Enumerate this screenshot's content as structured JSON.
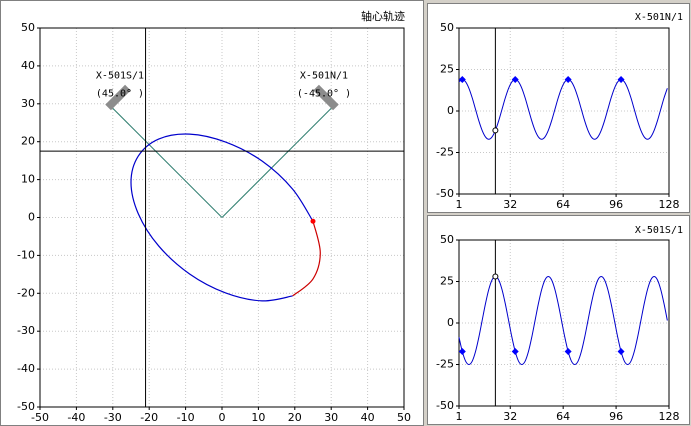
{
  "chart_data": [
    {
      "type": "orbit",
      "title": "轴心轨迹",
      "xlim": [
        -50,
        50
      ],
      "ylim": [
        -50,
        50
      ],
      "xticks": [
        -50,
        -40,
        -30,
        -20,
        -10,
        0,
        10,
        20,
        30,
        40,
        50
      ],
      "yticks": [
        -50,
        -40,
        -30,
        -20,
        -10,
        0,
        10,
        20,
        30,
        40,
        50
      ],
      "grid": true,
      "cursor": {
        "x": -21,
        "y": 17.5
      },
      "series": [
        {
          "color": "#0000cc",
          "x": [
            25.0,
            19.4,
            11.0,
            1,
            -8.9,
            -17.4,
            -23.0,
            -25,
            -23.0,
            -17.4,
            -8.9,
            1,
            11.0,
            19.4
          ],
          "values": [
            -1.0,
            7.5,
            14.9,
            19.9,
            22.0,
            20.7,
            16.2,
            9.3,
            1.0,
            -7.5,
            -14.9,
            -19.9,
            -22.0,
            -20.7
          ]
        },
        {
          "color": "#cc0000",
          "x": [
            25.0,
            27,
            25.0,
            19.4
          ],
          "values": [
            -1.0,
            -9.3,
            -16.2,
            -20.7
          ]
        }
      ],
      "key_point": {
        "x": 25.0,
        "y": -1.0,
        "color": "#ff0000"
      },
      "probes": [
        {
          "label": "X-501S/1",
          "angle_label": "(45.0° )"
        },
        {
          "label": "X-501N/1",
          "angle_label": "(-45.0° )"
        }
      ]
    },
    {
      "type": "line",
      "title": "X-501N/1",
      "xlim": [
        1,
        128
      ],
      "ylim": [
        -50,
        50
      ],
      "xticks": [
        1,
        32,
        64,
        96,
        128
      ],
      "yticks": [
        -50,
        -25,
        0,
        25,
        50
      ],
      "grid": true,
      "x": [
        1,
        3,
        5,
        7,
        9,
        11,
        13,
        15,
        17,
        19,
        21,
        23,
        25,
        27,
        29,
        31,
        33,
        35,
        37,
        39,
        41,
        43,
        45,
        47,
        49,
        51,
        53,
        55,
        57,
        59,
        61,
        63,
        65,
        67,
        69,
        71,
        73,
        75,
        77,
        79,
        81,
        83,
        85,
        87,
        89,
        91,
        93,
        95,
        97,
        99,
        101,
        103,
        105,
        107,
        109,
        111,
        113,
        115,
        117,
        119,
        121,
        123,
        125,
        127
      ],
      "series": [
        {
          "color": "#0000cc",
          "values": [
            17.6,
            19,
            17.6,
            13.7,
            7.9,
            1,
            -5.9,
            -11.7,
            -15.6,
            -17,
            -15.6,
            -11.7,
            -5.9,
            1,
            7.9,
            13.7,
            17.6,
            19,
            17.6,
            13.7,
            7.9,
            1,
            -5.9,
            -11.7,
            -15.6,
            -17,
            -15.6,
            -11.7,
            -5.9,
            1,
            7.9,
            13.7,
            17.6,
            19,
            17.6,
            13.7,
            7.9,
            1,
            -5.9,
            -11.7,
            -15.6,
            -17,
            -15.6,
            -11.7,
            -5.9,
            1,
            7.9,
            13.7,
            17.6,
            19,
            17.6,
            13.7,
            7.9,
            1,
            -5.9,
            -11.7,
            -15.6,
            -17,
            -15.6,
            -11.7,
            -5.9,
            1,
            7.9,
            13.7
          ]
        }
      ],
      "markers": {
        "x": [
          3,
          35,
          67,
          99
        ],
        "values": [
          19,
          19,
          19,
          19
        ]
      },
      "cursor": {
        "x": 23,
        "y": -11.7
      }
    },
    {
      "type": "line",
      "title": "X-501S/1",
      "xlim": [
        1,
        128
      ],
      "ylim": [
        -50,
        50
      ],
      "xticks": [
        1,
        32,
        64,
        96,
        128
      ],
      "yticks": [
        -50,
        -25,
        0,
        25,
        50
      ],
      "grid": true,
      "x": [
        1,
        3,
        5,
        7,
        9,
        11,
        13,
        15,
        17,
        19,
        21,
        23,
        25,
        27,
        29,
        31,
        33,
        35,
        37,
        39,
        41,
        43,
        45,
        47,
        49,
        51,
        53,
        55,
        57,
        59,
        61,
        63,
        65,
        67,
        69,
        71,
        73,
        75,
        77,
        79,
        81,
        83,
        85,
        87,
        89,
        91,
        93,
        95,
        97,
        99,
        101,
        103,
        105,
        107,
        109,
        111,
        113,
        115,
        117,
        119,
        121,
        123,
        125,
        127
      ],
      "series": [
        {
          "color": "#0000cc",
          "values": [
            -8.6,
            -17.2,
            -23,
            -25,
            -23,
            -17.2,
            -8.6,
            1.5,
            11.6,
            20.2,
            26,
            28,
            26,
            20.2,
            11.6,
            1.5,
            -8.6,
            -17.2,
            -23,
            -25,
            -23,
            -17.2,
            -8.6,
            1.5,
            11.6,
            20.2,
            26,
            28,
            26,
            20.2,
            11.6,
            1.5,
            -8.6,
            -17.2,
            -23,
            -25,
            -23,
            -17.2,
            -8.6,
            1.5,
            11.6,
            20.2,
            26,
            28,
            26,
            20.2,
            11.6,
            1.5,
            -8.6,
            -17.2,
            -23,
            -25,
            -23,
            -17.2,
            -8.6,
            1.5,
            11.6,
            20.2,
            26,
            28,
            26,
            20.2,
            11.6,
            1.5
          ]
        }
      ],
      "markers": {
        "x": [
          3,
          35,
          67,
          99
        ],
        "values": [
          -17.2,
          -17.2,
          -17.2,
          -17.2
        ]
      },
      "cursor": {
        "x": 23,
        "y": 28
      }
    }
  ]
}
